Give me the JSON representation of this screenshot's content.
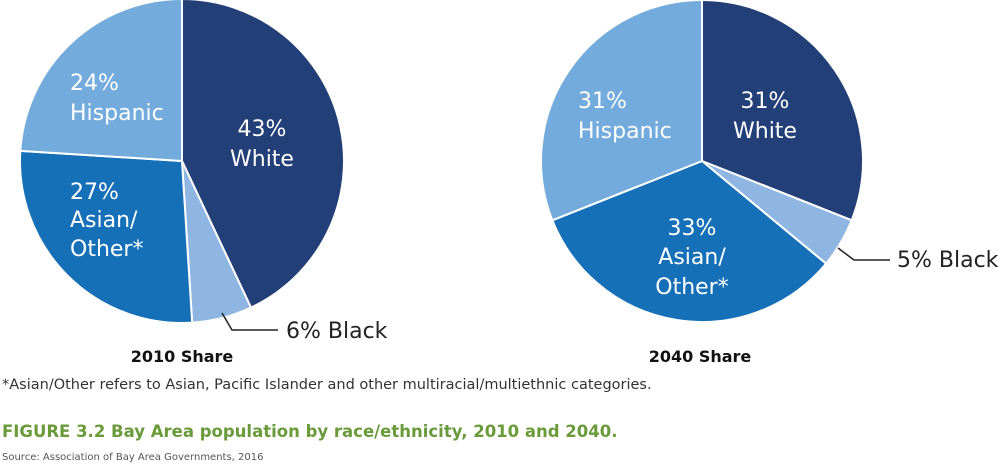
{
  "colors": {
    "white_slice": "#223f77",
    "black_slice": "#8fb6e2",
    "asian_slice": "#1670b8",
    "hispanic_slice": "#72abdc",
    "stroke": "#ffffff",
    "leader": "#222222"
  },
  "chart_data": [
    {
      "type": "pie",
      "title": "2010 Share",
      "slices": [
        {
          "label": "White",
          "value": 43,
          "display": "43%"
        },
        {
          "label": "Black",
          "value": 6,
          "display": "6% Black"
        },
        {
          "label": "Asian/ Other*",
          "value": 27,
          "display": "27%"
        },
        {
          "label": "Hispanic",
          "value": 24,
          "display": "24%"
        }
      ]
    },
    {
      "type": "pie",
      "title": "2040 Share",
      "slices": [
        {
          "label": "White",
          "value": 31,
          "display": "31%"
        },
        {
          "label": "Black",
          "value": 5,
          "display": "5% Black"
        },
        {
          "label": "Asian/ Other*",
          "value": 33,
          "display": "33%"
        },
        {
          "label": "Hispanic",
          "value": 31,
          "display": "31%"
        }
      ]
    }
  ],
  "labels": {
    "pie1": {
      "white": [
        "43%",
        "White"
      ],
      "asian": [
        "27%",
        "Asian/",
        "Other*"
      ],
      "hispanic": [
        "24%",
        "Hispanic"
      ],
      "black": "6% Black"
    },
    "pie2": {
      "white": [
        "31%",
        "White"
      ],
      "asian": [
        "33%",
        "Asian/",
        "Other*"
      ],
      "hispanic": [
        "31%",
        "Hispanic"
      ],
      "black": "5% Black"
    }
  },
  "footnote": "*Asian/Other refers to Asian, Pacific Islander and other multiracial/multiethnic categories.",
  "caption": "FIGURE 3.2  Bay Area population by race/ethnicity, 2010 and 2040.",
  "source": "Source: Association of Bay Area Governments, 2016"
}
